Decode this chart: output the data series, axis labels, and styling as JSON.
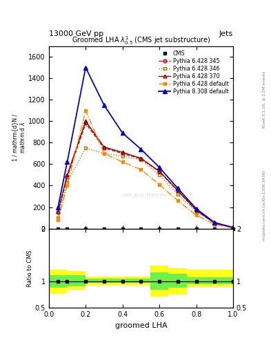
{
  "title": "Groomed LHA $\\lambda^{1}_{0.5}$ (CMS jet substructure)",
  "header_left": "13000 GeV pp",
  "header_right": "Jets",
  "right_label_top": "Rivet 3.1.10, ≥ 3.2M events",
  "right_label_bottom": "mcplots.cern.ch [arXiv:1306.3436]",
  "xlabel": "groomed LHA",
  "ratio_ylabel": "Ratio to CMS",
  "watermark": "CMS_2021_I192018x",
  "x_centers": [
    0.05,
    0.1,
    0.2,
    0.3,
    0.4,
    0.5,
    0.6,
    0.7,
    0.8,
    0.9,
    1.0
  ],
  "x_edges": [
    0.0,
    0.075,
    0.15,
    0.25,
    0.35,
    0.45,
    0.55,
    0.65,
    0.75,
    0.85,
    0.95,
    1.0
  ],
  "py6_345": [
    150,
    480,
    980,
    750,
    700,
    650,
    530,
    350,
    170,
    50,
    10
  ],
  "py6_346": [
    100,
    430,
    750,
    700,
    675,
    640,
    500,
    320,
    160,
    50,
    8
  ],
  "py6_370": [
    160,
    500,
    1000,
    760,
    710,
    655,
    535,
    355,
    172,
    51,
    10
  ],
  "py6_default": [
    80,
    400,
    1100,
    700,
    620,
    550,
    410,
    260,
    125,
    38,
    5
  ],
  "py8_default": [
    200,
    620,
    1500,
    1150,
    890,
    740,
    570,
    375,
    185,
    56,
    11
  ],
  "py6_345_color": "#cc0000",
  "py6_346_color": "#aa7700",
  "py6_370_color": "#880000",
  "py6_default_color": "#ff8800",
  "py8_default_color": "#0000cc",
  "cms_color": "#000000",
  "ylim": [
    0,
    1700
  ],
  "xlim": [
    0.0,
    1.0
  ],
  "ratio_ylim": [
    0.5,
    2.0
  ],
  "ratio_x_edges": [
    0.0,
    0.1,
    0.2,
    0.35,
    0.55,
    0.65,
    0.75,
    1.0
  ],
  "ratio_yellow_lo": [
    0.77,
    0.85,
    0.92,
    0.93,
    0.72,
    0.75,
    0.9
  ],
  "ratio_yellow_hi": [
    1.23,
    1.2,
    1.1,
    1.1,
    1.3,
    1.25,
    1.22
  ],
  "ratio_green_lo": [
    0.88,
    0.91,
    0.97,
    0.97,
    0.85,
    0.88,
    0.95
  ],
  "ratio_green_hi": [
    1.12,
    1.12,
    1.05,
    1.05,
    1.17,
    1.14,
    1.08
  ]
}
